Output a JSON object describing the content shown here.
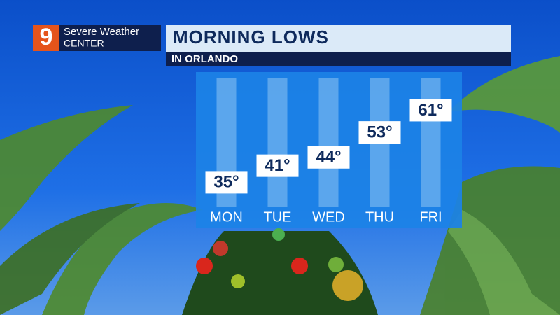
{
  "header": {
    "logo": "9",
    "brand_line1": "Severe Weather",
    "brand_line2": "CENTER"
  },
  "chart_data": {
    "type": "bar",
    "title": "MORNING LOWS",
    "subtitle": "IN ORLANDO",
    "categories": [
      "MON",
      "TUE",
      "WED",
      "THU",
      "FRI"
    ],
    "values": [
      35,
      41,
      44,
      53,
      61
    ],
    "value_labels": [
      "35°",
      "41°",
      "44°",
      "53°",
      "61°"
    ],
    "color": "#ffffff",
    "ylim": [
      25,
      75
    ]
  }
}
